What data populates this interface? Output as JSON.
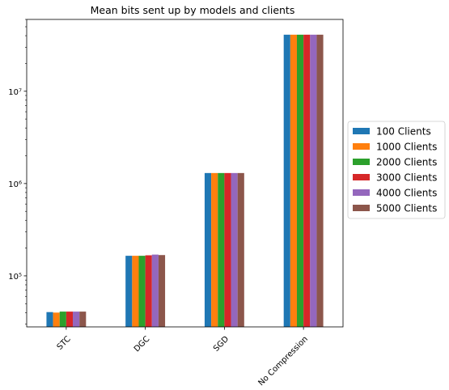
{
  "chart_data": {
    "type": "bar",
    "title": "Mean bits sent up by models and clients",
    "xlabel": "",
    "ylabel": "",
    "yscale": "log",
    "ylim": [
      28000,
      60000000
    ],
    "grid": false,
    "legend_position": "right",
    "categories": [
      "STC",
      "DGC",
      "SGD",
      "No Compression"
    ],
    "y_ticks": [
      {
        "value": 100000,
        "label": "10⁵"
      },
      {
        "value": 1000000,
        "label": "10⁶"
      },
      {
        "value": 10000000,
        "label": "10⁷"
      }
    ],
    "series": [
      {
        "name": "100 Clients",
        "color": "#1f77b4",
        "values": [
          40500,
          165000,
          1300000,
          41000000
        ]
      },
      {
        "name": "1000 Clients",
        "color": "#ff7f0e",
        "values": [
          40000,
          165000,
          1300000,
          41000000
        ]
      },
      {
        "name": "2000 Clients",
        "color": "#2ca02c",
        "values": [
          41000,
          165000,
          1300000,
          41000000
        ]
      },
      {
        "name": "3000 Clients",
        "color": "#d62728",
        "values": [
          41000,
          167000,
          1300000,
          41000000
        ]
      },
      {
        "name": "4000 Clients",
        "color": "#9467bd",
        "values": [
          41000,
          170000,
          1300000,
          41000000
        ]
      },
      {
        "name": "5000 Clients",
        "color": "#8c564b",
        "values": [
          41000,
          168000,
          1300000,
          41000000
        ]
      }
    ]
  }
}
